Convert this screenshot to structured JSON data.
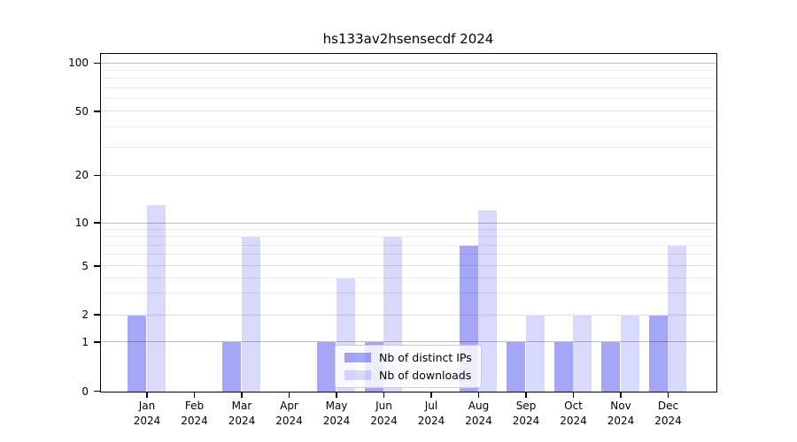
{
  "title": "hs133av2hsensecdf 2024",
  "legend": {
    "items": [
      {
        "label": "Nb of distinct IPs",
        "color": "rgba(0,0,230,0.35)"
      },
      {
        "label": "Nb of downloads",
        "color": "rgba(0,0,230,0.15)"
      }
    ]
  },
  "y_axis": {
    "tick_values": [
      0,
      1,
      2,
      5,
      10,
      20,
      50,
      100
    ],
    "tick_labels": [
      "0",
      "1",
      "2",
      "5",
      "10",
      "20",
      "50",
      "100"
    ]
  },
  "chart_data": {
    "type": "bar",
    "title": "hs133av2hsensecdf 2024",
    "categories": [
      "Jan 2024",
      "Feb 2024",
      "Mar 2024",
      "Apr 2024",
      "May 2024",
      "Jun 2024",
      "Jul 2024",
      "Aug 2024",
      "Sep 2024",
      "Oct 2024",
      "Nov 2024",
      "Dec 2024"
    ],
    "series": [
      {
        "name": "Nb of distinct IPs",
        "color": "rgba(0,0,230,0.35)",
        "values": [
          2,
          0,
          1,
          0,
          1,
          1,
          0,
          7,
          1,
          1,
          1,
          2
        ]
      },
      {
        "name": "Nb of downloads",
        "color": "rgba(0,0,230,0.15)",
        "values": [
          13,
          0,
          8,
          0,
          4,
          8,
          0,
          12,
          2,
          2,
          2,
          7
        ]
      }
    ],
    "xlabel": "",
    "ylabel": "",
    "yscale": "log above 1, linear 0-1",
    "yticks": [
      0,
      1,
      2,
      5,
      10,
      20,
      50,
      100
    ],
    "ylim": [
      0,
      110
    ],
    "grid": true,
    "legend_position": "lower center, inside axes"
  }
}
